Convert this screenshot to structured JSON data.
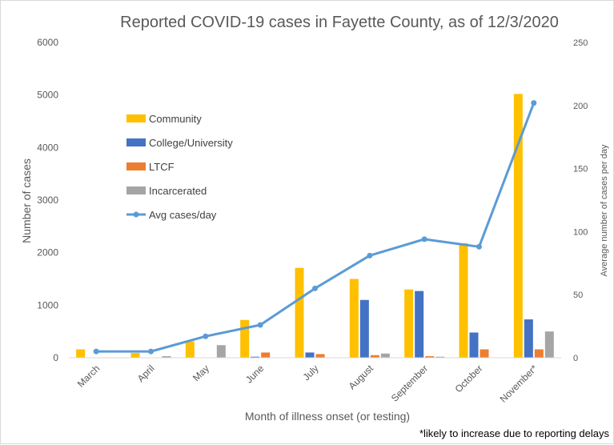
{
  "chart_data": {
    "type": "bar",
    "title": "Reported COVID-19 cases in Fayette County, as of 12/3/2020",
    "xlabel": "Month  of illness onset (or testing)",
    "ylabel": "Number of cases",
    "y2label": "Average number of cases per day",
    "footnote": "*likely to increase due to reporting delays",
    "ylim": [
      0,
      6000
    ],
    "y2lim": [
      0,
      250
    ],
    "yticks": [
      "0",
      "1000",
      "2000",
      "3000",
      "4000",
      "5000",
      "6000"
    ],
    "y2ticks": [
      "0",
      "50",
      "100",
      "150",
      "200",
      "250"
    ],
    "categories": [
      "March",
      "April",
      "May",
      "June",
      "July",
      "August",
      "September",
      "October",
      "November*"
    ],
    "series": [
      {
        "name": "Community",
        "type": "bar",
        "axis": "left",
        "color": "#FFC000",
        "values": [
          160,
          90,
          310,
          720,
          1710,
          1500,
          1300,
          2180,
          5020
        ]
      },
      {
        "name": "College/University",
        "type": "bar",
        "axis": "left",
        "color": "#4472C4",
        "values": [
          0,
          0,
          0,
          20,
          100,
          1100,
          1270,
          480,
          730
        ]
      },
      {
        "name": "LTCF",
        "type": "bar",
        "axis": "left",
        "color": "#ED7D31",
        "values": [
          0,
          0,
          0,
          100,
          70,
          50,
          30,
          160,
          160
        ]
      },
      {
        "name": "Incarcerated",
        "type": "bar",
        "axis": "left",
        "color": "#A5A5A5",
        "values": [
          0,
          30,
          240,
          0,
          0,
          80,
          20,
          0,
          500
        ]
      },
      {
        "name": "Avg cases/day",
        "type": "line",
        "axis": "right",
        "color": "#5B9BD5",
        "values": [
          5,
          5,
          17,
          26,
          55,
          81,
          94,
          88,
          202
        ]
      }
    ],
    "legend_position": "upper-left inside plot",
    "grid": false
  }
}
